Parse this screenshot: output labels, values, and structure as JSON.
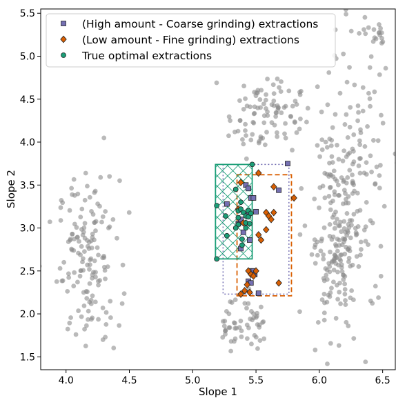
{
  "chart_data": {
    "type": "scatter",
    "xlabel": "Slope 1",
    "ylabel": "Slope 2",
    "xlim": [
      3.8,
      6.6
    ],
    "ylim": [
      1.35,
      5.55
    ],
    "xticks": [
      "4.0",
      "4.5",
      "5.0",
      "5.5",
      "6.0",
      "6.5"
    ],
    "yticks": [
      "1.5",
      "2.0",
      "2.5",
      "3.0",
      "3.5",
      "4.0",
      "4.5",
      "5.0",
      "5.5"
    ],
    "legend_position": "top-left",
    "colors": {
      "background_points": "#8c8c8c",
      "coarse": "#7570b3",
      "fine": "#d95f02",
      "optimal": "#1b9e77"
    },
    "series": [
      {
        "name": "(High amount - Coarse grinding) extractions",
        "marker": "square",
        "points": [
          [
            5.27,
            3.28
          ],
          [
            5.36,
            3.05
          ],
          [
            5.38,
            2.76
          ],
          [
            5.42,
            3.5
          ],
          [
            5.44,
            3.46
          ],
          [
            5.4,
            2.95
          ],
          [
            5.45,
            2.86
          ],
          [
            5.43,
            3.15
          ],
          [
            5.46,
            3.35
          ],
          [
            5.48,
            3.35
          ],
          [
            5.5,
            3.19
          ],
          [
            5.46,
            2.5
          ],
          [
            5.48,
            2.5
          ],
          [
            5.49,
            2.46
          ],
          [
            5.44,
            2.38
          ],
          [
            5.46,
            2.36
          ],
          [
            5.52,
            2.24
          ],
          [
            5.68,
            3.44
          ],
          [
            5.75,
            3.75
          ],
          [
            5.38,
            3.1
          ]
        ]
      },
      {
        "name": "(Low amount - Fine grinding) extractions",
        "marker": "diamond",
        "points": [
          [
            5.38,
            3.53
          ],
          [
            5.52,
            3.64
          ],
          [
            5.64,
            3.48
          ],
          [
            5.58,
            3.18
          ],
          [
            5.6,
            3.14
          ],
          [
            5.62,
            3.1
          ],
          [
            5.64,
            3.18
          ],
          [
            5.8,
            3.35
          ],
          [
            5.52,
            2.92
          ],
          [
            5.54,
            2.86
          ],
          [
            5.58,
            2.98
          ],
          [
            5.44,
            2.5
          ],
          [
            5.46,
            2.46
          ],
          [
            5.48,
            2.44
          ],
          [
            5.5,
            2.5
          ],
          [
            5.43,
            2.34
          ],
          [
            5.45,
            2.25
          ],
          [
            5.41,
            2.27
          ],
          [
            5.38,
            2.23
          ],
          [
            5.68,
            2.36
          ],
          [
            5.36,
            3.22
          ],
          [
            5.4,
            3.06
          ]
        ]
      },
      {
        "name": "True optimal extractions",
        "marker": "circle",
        "points": [
          [
            5.19,
            3.26
          ],
          [
            5.19,
            2.64
          ],
          [
            5.26,
            3.14
          ],
          [
            5.27,
            2.91
          ],
          [
            5.34,
            3.45
          ],
          [
            5.36,
            3.2
          ],
          [
            5.36,
            3.12
          ],
          [
            5.36,
            3.04
          ],
          [
            5.38,
            3.22
          ],
          [
            5.39,
            2.87
          ],
          [
            5.39,
            2.8
          ],
          [
            5.4,
            3.18
          ],
          [
            5.42,
            3.14
          ],
          [
            5.42,
            3.06
          ],
          [
            5.42,
            3.0
          ],
          [
            5.44,
            3.2
          ],
          [
            5.44,
            3.13
          ],
          [
            5.45,
            3.05
          ],
          [
            5.46,
            3.17
          ],
          [
            5.47,
            3.74
          ],
          [
            5.34,
            3.0
          ],
          [
            5.38,
            3.3
          ]
        ]
      }
    ],
    "annotations": [
      {
        "shape": "rectangle",
        "style": "dotted",
        "color": "#7570b3",
        "x": [
          5.24,
          5.76
        ],
        "y": [
          2.23,
          3.74
        ]
      },
      {
        "shape": "rectangle",
        "style": "dashed",
        "color": "#d95f02",
        "x": [
          5.35,
          5.78
        ],
        "y": [
          2.21,
          3.62
        ]
      },
      {
        "shape": "rectangle",
        "style": "crosshatch",
        "color": "#1b9e77",
        "x": [
          5.18,
          5.47
        ],
        "y": [
          2.64,
          3.74
        ]
      }
    ],
    "background_clusters": [
      {
        "center": [
          4.18,
          2.62
        ],
        "spread": [
          0.12,
          0.48
        ],
        "count": 150
      },
      {
        "center": [
          5.26,
          1.82
        ],
        "spread": [
          0.03,
          0.12
        ],
        "count": 10
      },
      {
        "center": [
          5.36,
          1.93
        ],
        "spread": [
          0.06,
          0.18
        ],
        "count": 22
      },
      {
        "center": [
          5.51,
          1.93
        ],
        "spread": [
          0.05,
          0.17
        ],
        "count": 22
      },
      {
        "center": [
          5.57,
          4.33
        ],
        "spread": [
          0.14,
          0.22
        ],
        "count": 95
      },
      {
        "center": [
          6.12,
          2.88
        ],
        "spread": [
          0.11,
          0.65
        ],
        "count": 180
      },
      {
        "center": [
          6.3,
          3.7
        ],
        "spread": [
          0.12,
          0.85
        ],
        "count": 120
      },
      {
        "center": [
          6.45,
          5.2
        ],
        "spread": [
          0.04,
          0.08
        ],
        "count": 15
      }
    ]
  }
}
